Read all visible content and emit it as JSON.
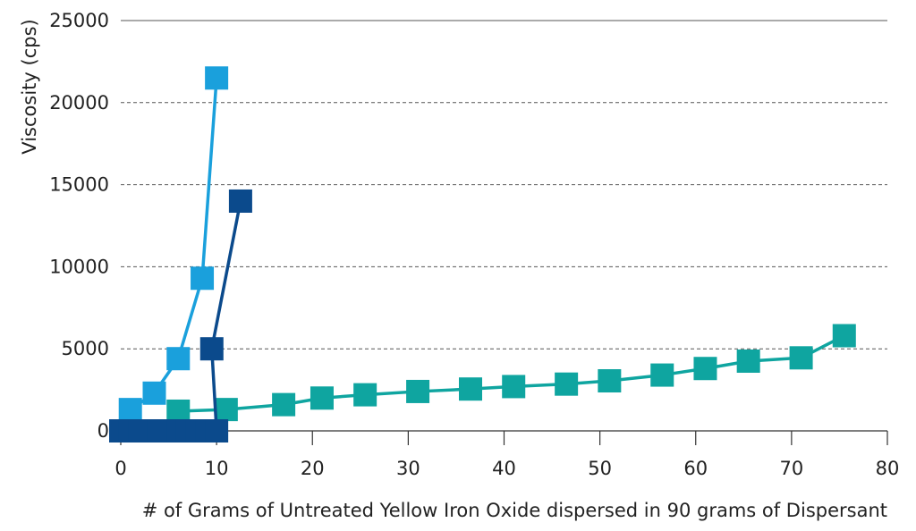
{
  "chart_data": {
    "type": "scatter",
    "title": "",
    "xlabel": "# of Grams of Untreated Yellow Iron Oxide dispersed in 90 grams of Dispersant",
    "ylabel": "Viscosity (cps)",
    "xlim": [
      0,
      80
    ],
    "ylim": [
      0,
      25000
    ],
    "x_ticks": [
      "0",
      "10",
      "20",
      "30",
      "40",
      "50",
      "60",
      "70",
      "80"
    ],
    "y_ticks": [
      "0",
      "5000",
      "10000",
      "15000",
      "20000",
      "25000"
    ],
    "grid": "horizontal dashed",
    "legend": "none",
    "series": [
      {
        "color": "#0fa5a0",
        "points": [
          [
            6,
            1200
          ],
          [
            11,
            1300
          ],
          [
            17,
            1600
          ],
          [
            21,
            2000
          ],
          [
            25.5,
            2200
          ],
          [
            31,
            2400
          ],
          [
            36.5,
            2550
          ],
          [
            41,
            2700
          ],
          [
            46.5,
            2850
          ],
          [
            51,
            3050
          ],
          [
            56.5,
            3400
          ],
          [
            61,
            3800
          ],
          [
            65.5,
            4250
          ],
          [
            71,
            4450
          ],
          [
            75.5,
            5800
          ]
        ]
      },
      {
        "color": "#1aa0dc",
        "points": [
          [
            1,
            1300
          ],
          [
            3.5,
            2300
          ],
          [
            6,
            4400
          ],
          [
            8.5,
            9300
          ],
          [
            10,
            21500
          ]
        ]
      },
      {
        "color": "#0b4a8c",
        "points": [
          [
            0,
            0
          ],
          [
            1,
            0
          ],
          [
            2,
            0
          ],
          [
            3,
            0
          ],
          [
            4,
            0
          ],
          [
            5,
            0
          ],
          [
            6,
            0
          ],
          [
            7,
            0
          ],
          [
            8,
            0
          ],
          [
            9,
            0
          ],
          [
            10,
            0
          ],
          [
            9.5,
            5000
          ],
          [
            12.5,
            14000
          ]
        ]
      }
    ]
  }
}
